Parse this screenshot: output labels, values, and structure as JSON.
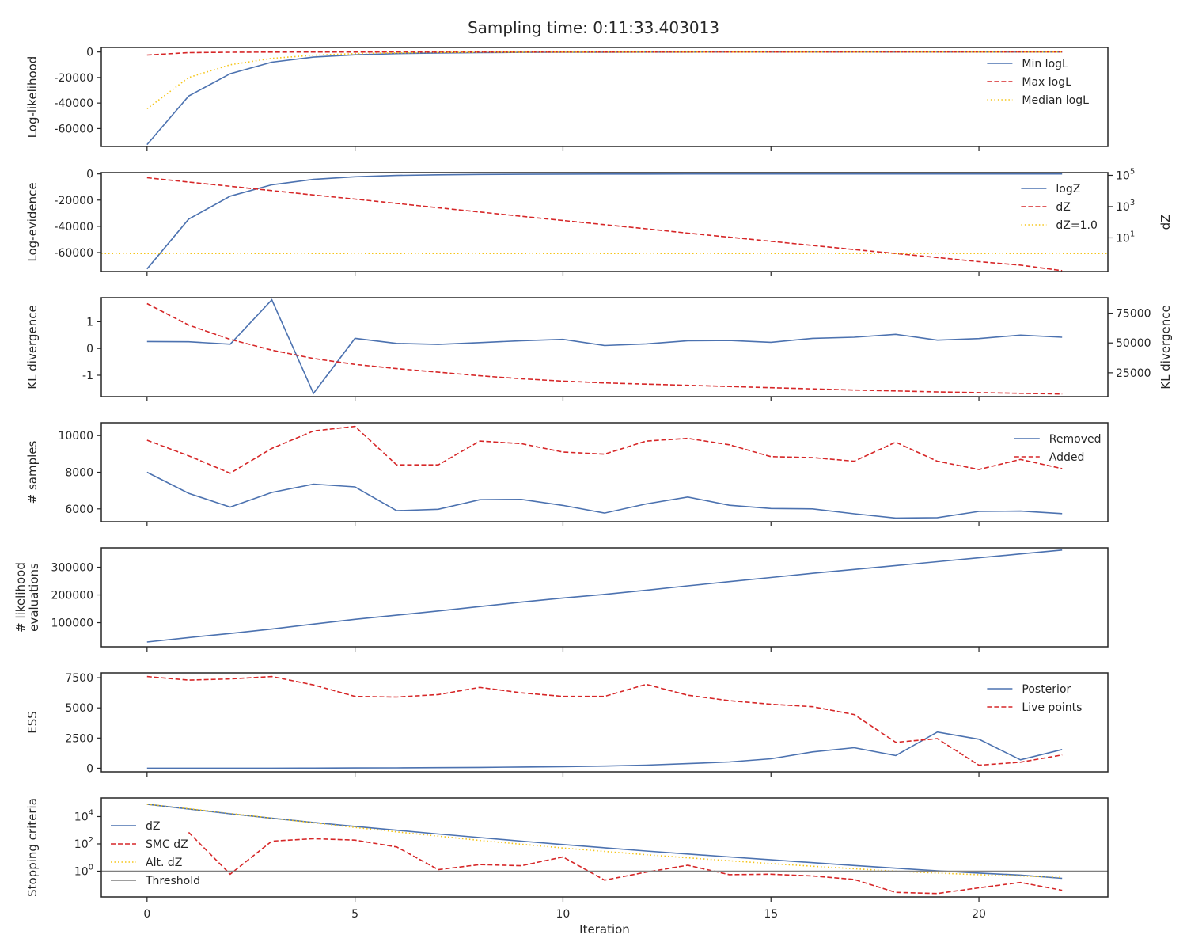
{
  "chart_data": {
    "type": "line",
    "title": "Sampling time: 0:11:33.403013",
    "xlabel": "Iteration",
    "xlim": [
      -1.1,
      23.1
    ],
    "xticks": [
      0,
      5,
      10,
      15,
      20
    ],
    "colors": {
      "blue": "#4c72b0",
      "red": "#d62728",
      "yellow": "#f5c518",
      "gray": "#7f7f7f"
    },
    "panels": [
      {
        "ylabel": [
          "Log-likelihood"
        ],
        "ylim": [
          -74000,
          3500
        ],
        "yticks": [
          0,
          -20000,
          -40000,
          -60000
        ],
        "legend": "top-right",
        "series": [
          {
            "name": "Min logL",
            "style": "solid",
            "color": "blue",
            "x": [
              0,
              1,
              2,
              3,
              4,
              5,
              6,
              7,
              8,
              9,
              10,
              11,
              12,
              13,
              14,
              15,
              16,
              17,
              18,
              19,
              20,
              21,
              22
            ],
            "y": [
              -72500,
              -34500,
              -17000,
              -8000,
              -4000,
              -2200,
              -1300,
              -800,
              -500,
              -300,
              -200,
              -150,
              -100,
              -80,
              -60,
              -50,
              -40,
              -30,
              -25,
              -20,
              -15,
              -12,
              -10
            ]
          },
          {
            "name": "Max logL",
            "style": "dashed",
            "color": "red",
            "x": [
              0,
              1,
              2,
              3,
              4,
              5,
              6,
              7,
              8,
              9,
              10,
              11,
              12,
              13,
              14,
              15,
              16,
              17,
              18,
              19,
              20,
              21,
              22
            ],
            "y": [
              -2400,
              -500,
              -200,
              -100,
              -60,
              -40,
              -30,
              -20,
              -15,
              -12,
              -10,
              -8,
              -6,
              -5,
              -4,
              -3,
              -3,
              -2,
              -2,
              -2,
              -1,
              -1,
              -1
            ]
          },
          {
            "name": "Median logL",
            "style": "dotted",
            "color": "yellow",
            "x": [
              0,
              1,
              2,
              3,
              4,
              5,
              6,
              7,
              8,
              9,
              10,
              11,
              12,
              13,
              14,
              15,
              16,
              17,
              18,
              19,
              20,
              21,
              22
            ],
            "y": [
              -44500,
              -20000,
              -10000,
              -5000,
              -2500,
              -1300,
              -700,
              -400,
              -250,
              -150,
              -100,
              -70,
              -50,
              -40,
              -30,
              -20,
              -15,
              -12,
              -10,
              -8,
              -6,
              -5,
              -4
            ]
          }
        ]
      },
      {
        "ylabel": [
          "Log-evidence"
        ],
        "ylim": [
          -74500,
          1000
        ],
        "yticks": [
          0,
          -20000,
          -40000,
          -60000
        ],
        "legend": "top-right",
        "y2label": "dZ",
        "y2scale": "log",
        "y2lim": [
          0.07,
          150000
        ],
        "y2ticks": [
          {
            "v": 100000,
            "b": "10",
            "e": "5"
          },
          {
            "v": 1000,
            "b": "10",
            "e": "3"
          },
          {
            "v": 10,
            "b": "10",
            "e": "1"
          }
        ],
        "series": [
          {
            "name": "logZ",
            "style": "solid",
            "color": "blue",
            "axis": "left",
            "x": [
              0,
              1,
              2,
              3,
              4,
              5,
              6,
              7,
              8,
              9,
              10,
              11,
              12,
              13,
              14,
              15,
              16,
              17,
              18,
              19,
              20,
              21,
              22
            ],
            "y": [
              -72500,
              -34500,
              -17000,
              -8300,
              -4200,
              -2200,
              -1200,
              -700,
              -400,
              -250,
              -150,
              -100,
              -70,
              -50,
              -35,
              -25,
              -20,
              -15,
              -12,
              -10,
              -8,
              -7,
              -6
            ]
          },
          {
            "name": "dZ",
            "style": "dashed",
            "color": "red",
            "axis": "right",
            "x": [
              0,
              1,
              2,
              3,
              4,
              5,
              6,
              7,
              8,
              9,
              10,
              11,
              12,
              13,
              14,
              15,
              16,
              17,
              18,
              19,
              20,
              21,
              22
            ],
            "y": [
              70000,
              37000,
              20000,
              10500,
              5500,
              3000,
              1600,
              850,
              450,
              240,
              130,
              70,
              38,
              20,
              11,
              6,
              3.3,
              1.8,
              1.0,
              0.55,
              0.3,
              0.18,
              0.08
            ]
          },
          {
            "name": "dZ=1.0",
            "style": "dotted",
            "color": "yellow",
            "axis": "right",
            "span": true,
            "x": [
              -1.1,
              23.1
            ],
            "y": [
              1.0,
              1.0
            ]
          }
        ]
      },
      {
        "ylabel": [
          "KL divergence"
        ],
        "ylim": [
          -1.8,
          1.9
        ],
        "yticks": [
          1,
          0,
          -1
        ],
        "y2label": "KL divergence",
        "y2lim": [
          5000,
          88000
        ],
        "y2ticks": [
          {
            "v": 75000,
            "t": "75000"
          },
          {
            "v": 50000,
            "t": "50000"
          },
          {
            "v": 25000,
            "t": "25000"
          }
        ],
        "series": [
          {
            "name": "",
            "style": "solid",
            "color": "blue",
            "axis": "left",
            "x": [
              0,
              1,
              2,
              3,
              4,
              5,
              6,
              7,
              8,
              9,
              10,
              11,
              12,
              13,
              14,
              15,
              16,
              17,
              18,
              19,
              20,
              21,
              22
            ],
            "y": [
              0.26,
              0.25,
              0.16,
              1.82,
              -1.68,
              0.38,
              0.19,
              0.15,
              0.22,
              0.29,
              0.34,
              0.11,
              0.17,
              0.29,
              0.3,
              0.23,
              0.38,
              0.42,
              0.53,
              0.31,
              0.37,
              0.5,
              0.42
            ]
          },
          {
            "name": "",
            "style": "dashed",
            "color": "red",
            "axis": "right",
            "x": [
              0,
              1,
              2,
              3,
              4,
              5,
              6,
              7,
              8,
              9,
              10,
              11,
              12,
              13,
              14,
              15,
              16,
              17,
              18,
              19,
              20,
              21,
              22
            ],
            "y": [
              83000,
              65000,
              53000,
              44000,
              37000,
              32000,
              28500,
              25500,
              22500,
              20000,
              18000,
              16500,
              15500,
              14500,
              13500,
              12500,
              11500,
              10500,
              9800,
              9000,
              8400,
              7800,
              7200
            ]
          }
        ]
      },
      {
        "ylabel": [
          "# samples"
        ],
        "ylim": [
          5300,
          10700
        ],
        "yticks": [
          10000,
          8000,
          6000
        ],
        "legend": "top-right",
        "series": [
          {
            "name": "Removed",
            "style": "solid",
            "color": "blue",
            "x": [
              0,
              1,
              2,
              3,
              4,
              5,
              6,
              7,
              8,
              9,
              10,
              11,
              12,
              13,
              14,
              15,
              16,
              17,
              18,
              19,
              20,
              21,
              22
            ],
            "y": [
              8000,
              6850,
              6100,
              6900,
              7350,
              7200,
              5900,
              5980,
              6500,
              6520,
              6190,
              5770,
              6270,
              6650,
              6200,
              6020,
              6000,
              5730,
              5500,
              5520,
              5860,
              5880,
              5740
            ]
          },
          {
            "name": "Added",
            "style": "dashed",
            "color": "red",
            "x": [
              0,
              1,
              2,
              3,
              4,
              5,
              6,
              7,
              8,
              9,
              10,
              11,
              12,
              13,
              14,
              15,
              16,
              17,
              18,
              19,
              20,
              21,
              22
            ],
            "y": [
              9750,
              8900,
              7950,
              9300,
              10250,
              10500,
              8400,
              8400,
              9700,
              9560,
              9100,
              8990,
              9700,
              9850,
              9500,
              8850,
              8800,
              8600,
              9640,
              8600,
              8150,
              8700,
              8200
            ]
          }
        ]
      },
      {
        "ylabel": [
          "# likelihood",
          "evaluations"
        ],
        "ylim": [
          13000,
          370000
        ],
        "yticks": [
          300000,
          200000,
          100000
        ],
        "series": [
          {
            "name": "",
            "style": "solid",
            "color": "blue",
            "x": [
              0,
              1,
              2,
              3,
              4,
              5,
              6,
              7,
              8,
              9,
              10,
              11,
              12,
              13,
              14,
              15,
              16,
              17,
              18,
              19,
              20,
              21,
              22
            ],
            "y": [
              30000,
              46000,
              61000,
              77000,
              95000,
              112000,
              127000,
              142000,
              158000,
              174000,
              189000,
              202000,
              217000,
              233000,
              248000,
              263000,
              278000,
              292000,
              306000,
              320000,
              334000,
              348000,
              362000
            ]
          }
        ]
      },
      {
        "ylabel": [
          "ESS"
        ],
        "ylim": [
          -300,
          7900
        ],
        "yticks": [
          7500,
          5000,
          2500,
          0
        ],
        "legend": "top-right",
        "series": [
          {
            "name": "Posterior",
            "style": "solid",
            "color": "blue",
            "x": [
              0,
              1,
              2,
              3,
              4,
              5,
              6,
              7,
              8,
              9,
              10,
              11,
              12,
              13,
              14,
              15,
              16,
              17,
              18,
              19,
              20,
              21,
              22
            ],
            "y": [
              0,
              0,
              0,
              0,
              10,
              20,
              30,
              50,
              70,
              100,
              130,
              180,
              260,
              380,
              520,
              780,
              1350,
              1700,
              1050,
              3000,
              2400,
              700,
              1550
            ]
          },
          {
            "name": "Live points",
            "style": "dashed",
            "color": "red",
            "x": [
              0,
              1,
              2,
              3,
              4,
              5,
              6,
              7,
              8,
              9,
              10,
              11,
              12,
              13,
              14,
              15,
              16,
              17,
              18,
              19,
              20,
              21,
              22
            ],
            "y": [
              7600,
              7300,
              7400,
              7600,
              6900,
              5950,
              5900,
              6100,
              6700,
              6250,
              5950,
              5950,
              6950,
              6050,
              5600,
              5300,
              5100,
              4450,
              2150,
              2450,
              250,
              500,
              1100
            ]
          }
        ]
      },
      {
        "ylabel": [
          "Stopping criteria"
        ],
        "yscale": "log",
        "ylim": [
          0.013,
          230000
        ],
        "yticks": [
          {
            "v": 10000,
            "b": "10",
            "e": "4"
          },
          {
            "v": 100,
            "b": "10",
            "e": "2"
          },
          {
            "v": 1,
            "b": "10",
            "e": "0"
          }
        ],
        "legend": "top-left",
        "series": [
          {
            "name": "dZ",
            "style": "solid",
            "color": "blue",
            "x": [
              0,
              1,
              2,
              3,
              4,
              5,
              6,
              7,
              8,
              9,
              10,
              11,
              12,
              13,
              14,
              15,
              16,
              17,
              18,
              19,
              20,
              21,
              22
            ],
            "y": [
              80000,
              36000,
              16000,
              7500,
              3700,
              1900,
              1000,
              530,
              290,
              160,
              90,
              52,
              30,
              18,
              11,
              6.8,
              4.2,
              2.6,
              1.65,
              1.07,
              0.72,
              0.52,
              0.3
            ]
          },
          {
            "name": "SMC dZ",
            "style": "dashed",
            "color": "red",
            "x": [
              1,
              2,
              3,
              4,
              5,
              6,
              7,
              8,
              9,
              10,
              11,
              12,
              13,
              14,
              15,
              16,
              17,
              18,
              19,
              20,
              21,
              22
            ],
            "y": [
              700,
              0.6,
              160,
              240,
              190,
              60,
              1.3,
              3.0,
              2.5,
              11,
              0.22,
              0.85,
              2.7,
              0.55,
              0.6,
              0.45,
              0.25,
              0.028,
              0.023,
              0.06,
              0.15,
              0.04
            ]
          },
          {
            "name": "Alt. dZ",
            "style": "dotted",
            "color": "yellow",
            "x": [
              0,
              1,
              2,
              3,
              4,
              5,
              6,
              7,
              8,
              9,
              10,
              11,
              12,
              13,
              14,
              15,
              16,
              17,
              18,
              19,
              20,
              21,
              22
            ],
            "y": [
              80000,
              38000,
              17000,
              7600,
              3500,
              1600,
              760,
              370,
              180,
              95,
              50,
              28,
              16,
              9.5,
              5.8,
              3.6,
              2.3,
              1.5,
              1.0,
              0.72,
              0.55,
              0.45,
              0.35
            ]
          },
          {
            "name": "Threshold",
            "style": "solid",
            "color": "gray",
            "span": true,
            "x": [
              -1.1,
              23.1
            ],
            "y": [
              1,
              1
            ]
          }
        ]
      }
    ]
  }
}
